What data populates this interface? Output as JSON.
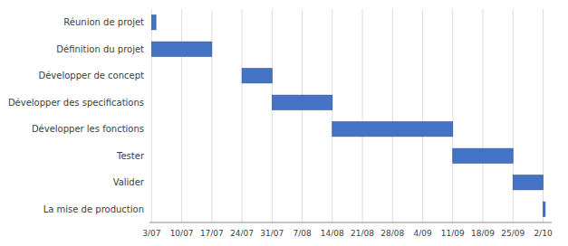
{
  "chart_data": {
    "type": "gantt",
    "orientation": "horizontal",
    "categories": [
      "Réunion de projet",
      "Définition du projet",
      "Développer de concept",
      "Développer des specifications",
      "Développer les fonctions",
      "Tester",
      "Valider",
      "La mise de production"
    ],
    "starts": [
      0,
      0,
      21,
      28,
      42,
      70,
      84,
      91
    ],
    "values": [
      1,
      14,
      7,
      14,
      28,
      14,
      7,
      0.5
    ],
    "color": "#4472C4",
    "xlim": [
      -0.5,
      93
    ],
    "xticks": [
      {
        "value": 0,
        "label": "3/07"
      },
      {
        "value": 7,
        "label": "10/07"
      },
      {
        "value": 14,
        "label": "17/07"
      },
      {
        "value": 21,
        "label": "24/07"
      },
      {
        "value": 28,
        "label": "31/07"
      },
      {
        "value": 35,
        "label": "7/08"
      },
      {
        "value": 42,
        "label": "14/08"
      },
      {
        "value": 49,
        "label": "21/08"
      },
      {
        "value": 56,
        "label": "28/08"
      },
      {
        "value": 63,
        "label": "4/09"
      },
      {
        "value": 70,
        "label": "11/09"
      },
      {
        "value": 77,
        "label": "18/09"
      },
      {
        "value": 84,
        "label": "25/09"
      },
      {
        "value": 91,
        "label": "2/10"
      }
    ],
    "grid": true
  }
}
